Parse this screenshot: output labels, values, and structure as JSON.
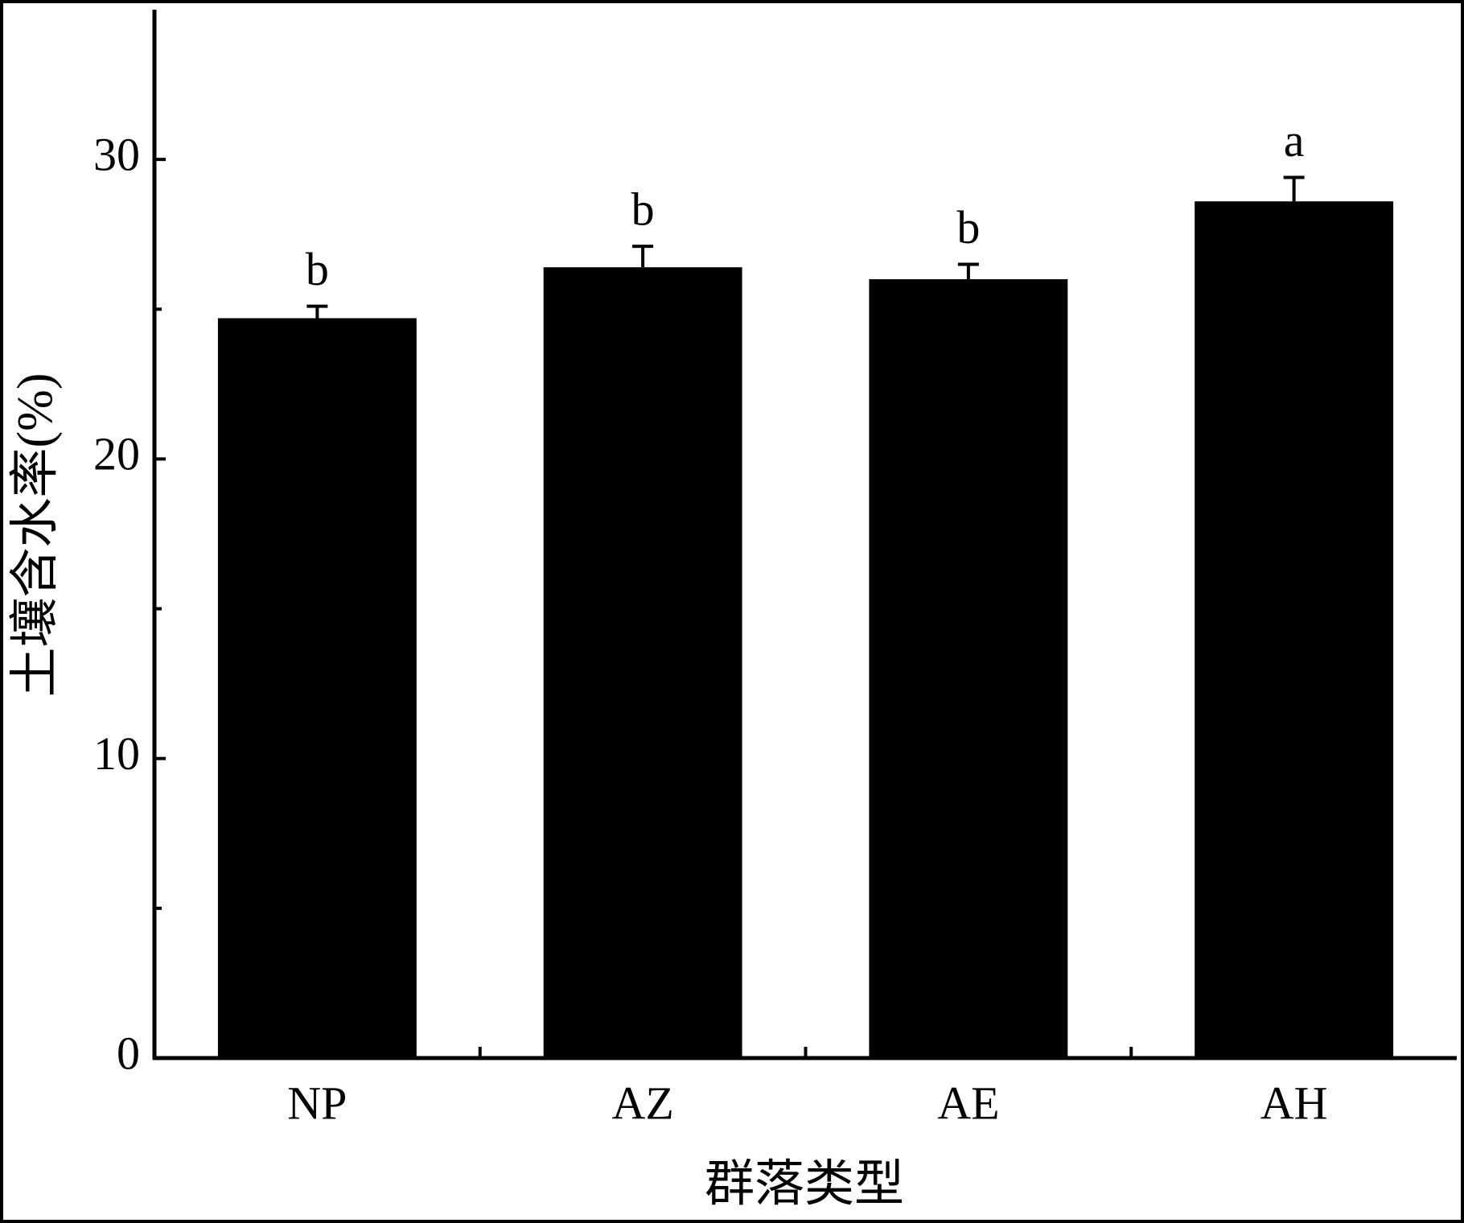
{
  "chart_data": {
    "type": "bar",
    "x_label": "群落类型",
    "y_label": "土壤含水率(%)",
    "categories": [
      "NP",
      "AZ",
      "AE",
      "AH"
    ],
    "values": [
      24.7,
      26.4,
      26.0,
      28.6
    ],
    "errors": [
      0.4,
      0.7,
      0.5,
      0.8
    ],
    "annotations": [
      "b",
      "b",
      "b",
      "a"
    ],
    "color": "#000000",
    "ylim": [
      0,
      35
    ],
    "yticks": [
      0,
      10,
      20,
      30
    ],
    "yminor_ticks": [
      5,
      15,
      25
    ],
    "grid": false
  }
}
